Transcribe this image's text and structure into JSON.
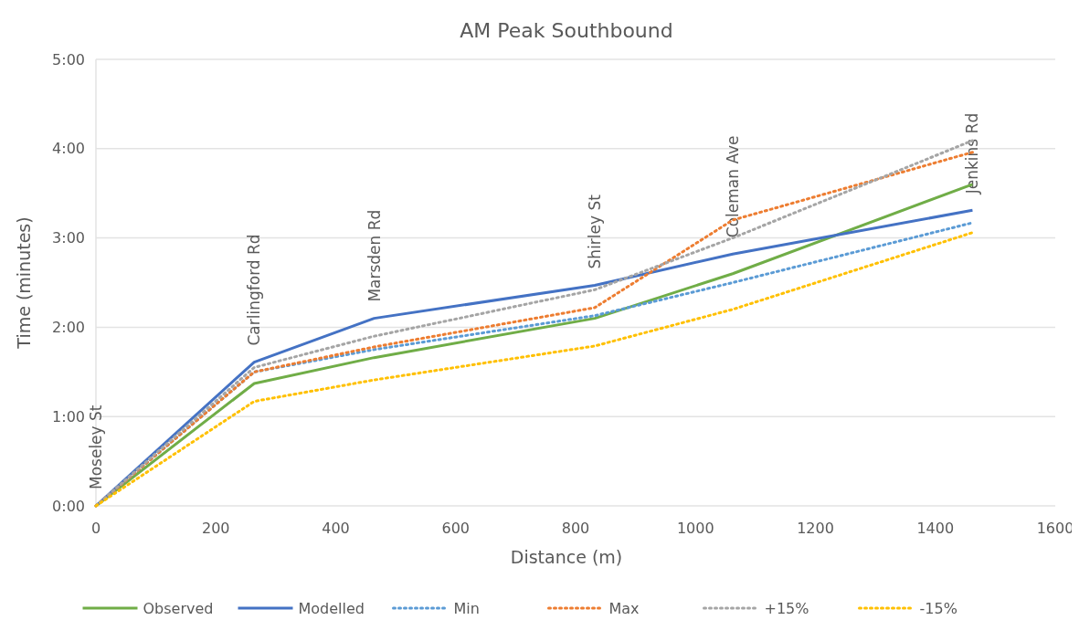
{
  "chart_data": {
    "type": "line",
    "title": "AM Peak Southbound",
    "xlabel": "Distance (m)",
    "ylabel": "Time (minutes)",
    "x": [
      0,
      264,
      464,
      832,
      1062,
      1462
    ],
    "series": [
      {
        "name": "Observed",
        "color": "#70ad47",
        "line_style": "solid",
        "values": [
          0,
          1.37,
          1.66,
          2.1,
          2.6,
          3.6
        ]
      },
      {
        "name": "Modelled",
        "color": "#4472c4",
        "line_style": "solid",
        "values": [
          0,
          1.61,
          2.1,
          2.47,
          2.82,
          3.31
        ]
      },
      {
        "name": "Min",
        "color": "#5b9bd5",
        "line_style": "dotted",
        "values": [
          0,
          1.5,
          1.75,
          2.13,
          2.5,
          3.17
        ]
      },
      {
        "name": "Max",
        "color": "#ed7d31",
        "line_style": "dotted",
        "values": [
          0,
          1.5,
          1.78,
          2.22,
          3.2,
          3.96
        ]
      },
      {
        "name": "+15%",
        "color": "#a5a5a5",
        "line_style": "dotted",
        "values": [
          0,
          1.55,
          1.9,
          2.42,
          3.0,
          4.09
        ]
      },
      {
        "name": "-15%",
        "color": "#ffc000",
        "line_style": "dotted",
        "values": [
          0,
          1.17,
          1.41,
          1.79,
          2.2,
          3.06
        ]
      }
    ],
    "xlim": [
      0,
      1600
    ],
    "xticks": [
      0,
      200,
      400,
      600,
      800,
      1000,
      1200,
      1400,
      1600
    ],
    "ylim": [
      0,
      5
    ],
    "yticks": [
      {
        "value": 0,
        "label": "0:00"
      },
      {
        "value": 1,
        "label": "1:00"
      },
      {
        "value": 2,
        "label": "2:00"
      },
      {
        "value": 3,
        "label": "3:00"
      },
      {
        "value": 4,
        "label": "4:00"
      },
      {
        "value": 5,
        "label": "5:00"
      }
    ],
    "grid": "y",
    "legend": "bottom",
    "marker": "none",
    "annotations": [
      {
        "text": "Moseley St",
        "x": 0,
        "y": 0
      },
      {
        "text": "Carlingford Rd",
        "x": 264,
        "y": 1.61
      },
      {
        "text": "Marsden Rd",
        "x": 464,
        "y": 2.1
      },
      {
        "text": "Shirley St",
        "x": 832,
        "y": 2.47
      },
      {
        "text": "Coleman Ave",
        "x": 1062,
        "y": 2.82
      },
      {
        "text": "Jenkins Rd",
        "x": 1462,
        "y": 3.31
      }
    ]
  }
}
